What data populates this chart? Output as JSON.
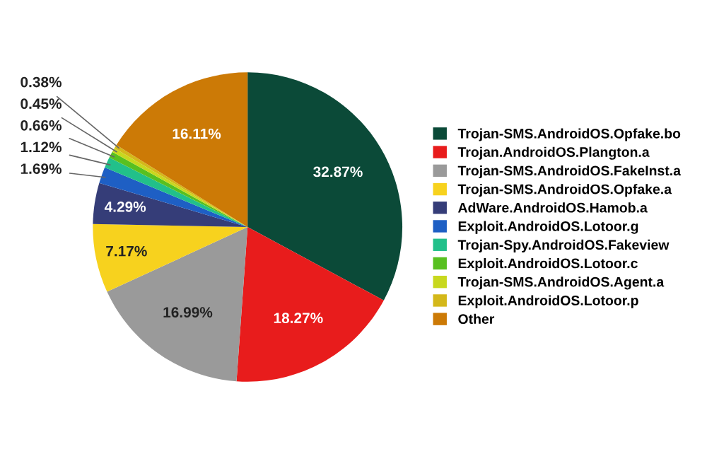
{
  "chart_data": {
    "type": "pie",
    "categories": [
      "Trojan-SMS.AndroidOS.Opfake.bo",
      "Trojan.AndroidOS.Plangton.a",
      "Trojan-SMS.AndroidOS.FakeInst.a",
      "Trojan-SMS.AndroidOS.Opfake.a",
      "AdWare.AndroidOS.Hamob.a",
      "Exploit.AndroidOS.Lotoor.g",
      "Trojan-Spy.AndroidOS.Fakeview",
      "Exploit.AndroidOS.Lotoor.c",
      "Trojan-SMS.AndroidOS.Agent.a",
      "Exploit.AndroidOS.Lotoor.p",
      "Other"
    ],
    "values": [
      32.87,
      18.27,
      16.99,
      7.17,
      4.29,
      1.69,
      1.12,
      0.66,
      0.45,
      0.38,
      16.11
    ],
    "colors": [
      "#0b4a38",
      "#e81c1c",
      "#9a9a9a",
      "#f7d21e",
      "#353d78",
      "#1e5fc4",
      "#22c08a",
      "#58c020",
      "#c8d81e",
      "#d4b81a",
      "#cc7a06"
    ],
    "value_labels": [
      "32.87%",
      "18.27%",
      "16.99%",
      "7.17%",
      "4.29%",
      "1.69%",
      "1.12%",
      "0.66%",
      "0.45%",
      "0.38%",
      "16.11%"
    ],
    "legend": "right"
  }
}
